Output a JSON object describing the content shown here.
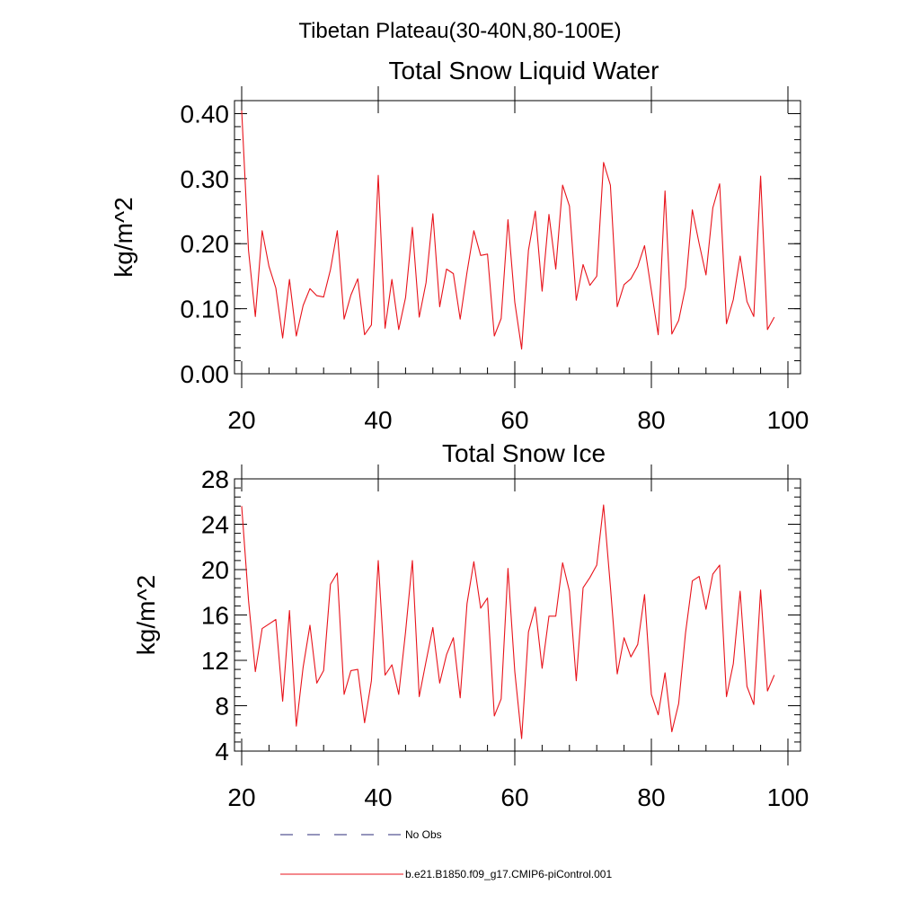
{
  "figure": {
    "suptitle": "Tibetan Plateau(30-40N,80-100E)"
  },
  "legend": {
    "entries": [
      {
        "label": "No Obs",
        "color": "#2b2b7a",
        "dash": "dashed"
      },
      {
        "label": "b.e21.B1850.f09_g17.CMIP6-piControl.001",
        "color": "#e8131b",
        "dash": "solid"
      }
    ]
  },
  "chart_data": [
    {
      "type": "line",
      "title": "Total Snow Liquid Water",
      "xlabel": "",
      "ylabel": "kg/m^2",
      "xlim": [
        20,
        100
      ],
      "ylim": [
        0.0,
        0.42
      ],
      "x_ticks": [
        20,
        40,
        60,
        80,
        100
      ],
      "y_ticks": [
        0.0,
        0.1,
        0.2,
        0.3,
        0.4
      ],
      "y_tick_labels": [
        "0.00",
        "0.10",
        "0.20",
        "0.30",
        "0.40"
      ],
      "y_minor_step": 0.02,
      "x_minor_step": 4,
      "series": [
        {
          "color": "#e8131b",
          "x": [
            20,
            21,
            22,
            23,
            24,
            25,
            26,
            27,
            28,
            29,
            30,
            31,
            32,
            33,
            34,
            35,
            36,
            37,
            38,
            39,
            40,
            41,
            42,
            43,
            44,
            45,
            46,
            47,
            48,
            49,
            50,
            51,
            52,
            53,
            54,
            55,
            56,
            57,
            58,
            59,
            60,
            61,
            62,
            63,
            64,
            65,
            66,
            67,
            68,
            69,
            70,
            71,
            72,
            73,
            74,
            75,
            76,
            77,
            78,
            79,
            80,
            81,
            82,
            83,
            84,
            85,
            86,
            87,
            88,
            89,
            90,
            91,
            92,
            93,
            94,
            95,
            96,
            97,
            98
          ],
          "values": [
            0.405,
            0.19,
            0.088,
            0.22,
            0.165,
            0.132,
            0.055,
            0.145,
            0.058,
            0.105,
            0.131,
            0.12,
            0.118,
            0.16,
            0.22,
            0.084,
            0.121,
            0.146,
            0.06,
            0.075,
            0.305,
            0.07,
            0.145,
            0.068,
            0.117,
            0.225,
            0.087,
            0.14,
            0.246,
            0.103,
            0.161,
            0.154,
            0.084,
            0.156,
            0.22,
            0.182,
            0.184,
            0.058,
            0.085,
            0.237,
            0.11,
            0.038,
            0.19,
            0.25,
            0.127,
            0.245,
            0.161,
            0.29,
            0.258,
            0.113,
            0.168,
            0.136,
            0.15,
            0.325,
            0.29,
            0.103,
            0.137,
            0.146,
            0.165,
            0.197,
            0.128,
            0.06,
            0.281,
            0.061,
            0.082,
            0.133,
            0.252,
            0.2,
            0.152,
            0.255,
            0.292,
            0.077,
            0.114,
            0.181,
            0.111,
            0.088,
            0.304,
            0.068,
            0.087
          ]
        }
      ]
    },
    {
      "type": "line",
      "title": "Total Snow Ice",
      "xlabel": "",
      "ylabel": "kg/m^2",
      "xlim": [
        20,
        100
      ],
      "ylim": [
        4,
        28
      ],
      "x_ticks": [
        20,
        40,
        60,
        80,
        100
      ],
      "y_ticks": [
        4,
        8,
        12,
        16,
        20,
        24,
        28
      ],
      "y_tick_labels": [
        "4",
        "8",
        "12",
        "16",
        "20",
        "24",
        "28"
      ],
      "y_minor_step": 0.8,
      "x_minor_step": 4,
      "series": [
        {
          "color": "#e8131b",
          "x": [
            20,
            21,
            22,
            23,
            24,
            25,
            26,
            27,
            28,
            29,
            30,
            31,
            32,
            33,
            34,
            35,
            36,
            37,
            38,
            39,
            40,
            41,
            42,
            43,
            44,
            45,
            46,
            47,
            48,
            49,
            50,
            51,
            52,
            53,
            54,
            55,
            56,
            57,
            58,
            59,
            60,
            61,
            62,
            63,
            64,
            65,
            66,
            67,
            68,
            69,
            70,
            71,
            72,
            73,
            74,
            75,
            76,
            77,
            78,
            79,
            80,
            81,
            82,
            83,
            84,
            85,
            86,
            87,
            88,
            89,
            90,
            91,
            92,
            93,
            94,
            95,
            96,
            97,
            98
          ],
          "values": [
            25.6,
            17.3,
            11.0,
            14.8,
            15.2,
            15.6,
            8.4,
            16.4,
            6.2,
            11.4,
            15.1,
            10.0,
            11.1,
            18.7,
            19.7,
            9.0,
            11.1,
            11.2,
            6.5,
            10.2,
            20.8,
            10.7,
            11.6,
            9.0,
            14.5,
            20.8,
            8.8,
            11.9,
            14.9,
            10.0,
            12.5,
            14.0,
            8.7,
            17.0,
            20.7,
            16.6,
            17.5,
            7.1,
            8.6,
            20.1,
            11.0,
            5.1,
            14.5,
            16.7,
            11.3,
            15.9,
            15.9,
            20.6,
            18.1,
            10.2,
            18.4,
            19.3,
            20.4,
            25.7,
            18.5,
            10.8,
            14.0,
            12.3,
            13.4,
            17.8,
            9.0,
            7.2,
            10.9,
            5.7,
            8.2,
            14.4,
            19.0,
            19.4,
            16.5,
            19.6,
            20.4,
            8.8,
            11.7,
            18.1,
            9.7,
            8.1,
            18.2,
            9.3,
            10.7
          ]
        }
      ]
    }
  ]
}
